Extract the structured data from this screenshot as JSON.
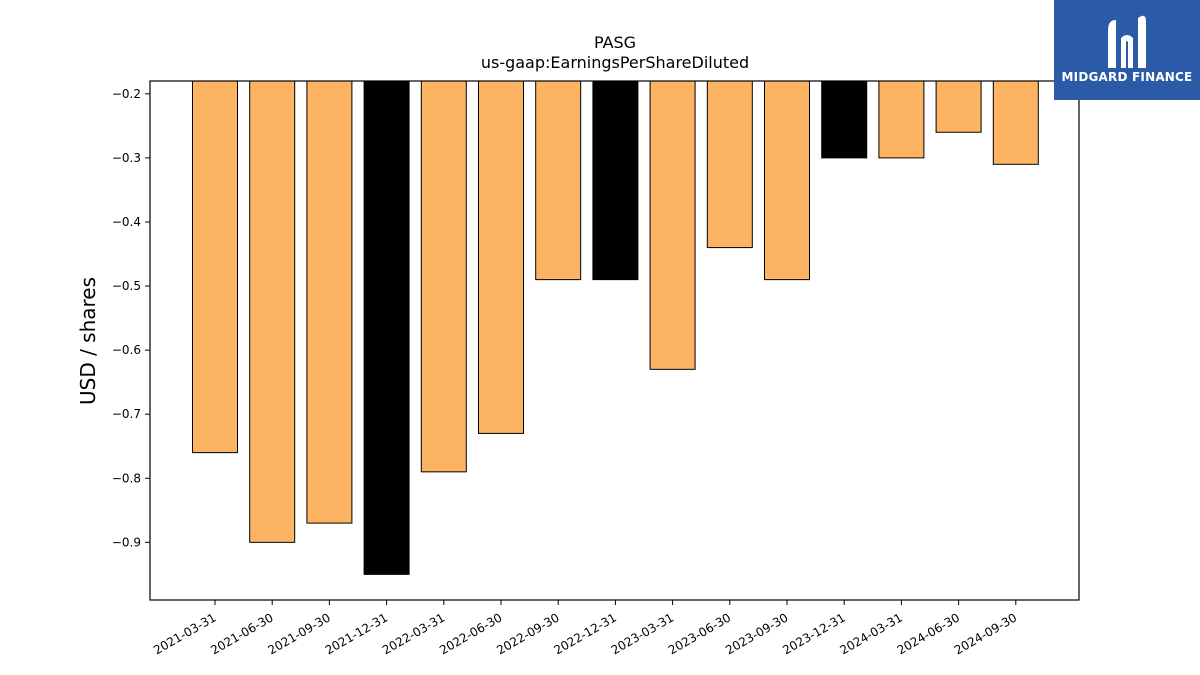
{
  "brand": {
    "name": "MIDGARD FINANCE",
    "bg_color": "#2b5aa8",
    "logo_icon": "midgard-m-logo-icon"
  },
  "colors": {
    "bar_default": "#fdb462",
    "bar_highlight": "#000000",
    "edge": "#000000"
  },
  "chart_data": {
    "type": "bar",
    "title": "PASG",
    "subtitle": "us-gaap:EarningsPerShareDiluted",
    "xlabel": "",
    "ylabel": "USD / shares",
    "ylim": [
      -0.99,
      -0.18
    ],
    "yticks": [
      -0.2,
      -0.3,
      -0.4,
      -0.5,
      -0.6,
      -0.7,
      -0.8,
      -0.9
    ],
    "ytick_labels": [
      "−0.2",
      "−0.3",
      "−0.4",
      "−0.5",
      "−0.6",
      "−0.7",
      "−0.8",
      "−0.9"
    ],
    "grid": false,
    "categories": [
      "2021-03-31",
      "2021-06-30",
      "2021-09-30",
      "2021-12-31",
      "2022-03-31",
      "2022-06-30",
      "2022-09-30",
      "2022-12-31",
      "2023-03-31",
      "2023-06-30",
      "2023-09-30",
      "2023-12-31",
      "2024-03-31",
      "2024-06-30",
      "2024-09-30"
    ],
    "values": [
      -0.76,
      -0.9,
      -0.87,
      -0.95,
      -0.79,
      -0.73,
      -0.49,
      -0.49,
      -0.63,
      -0.44,
      -0.49,
      -0.3,
      -0.3,
      -0.26,
      -0.31
    ],
    "highlighted": [
      false,
      false,
      false,
      true,
      false,
      false,
      false,
      true,
      false,
      false,
      false,
      true,
      false,
      false,
      false
    ]
  }
}
